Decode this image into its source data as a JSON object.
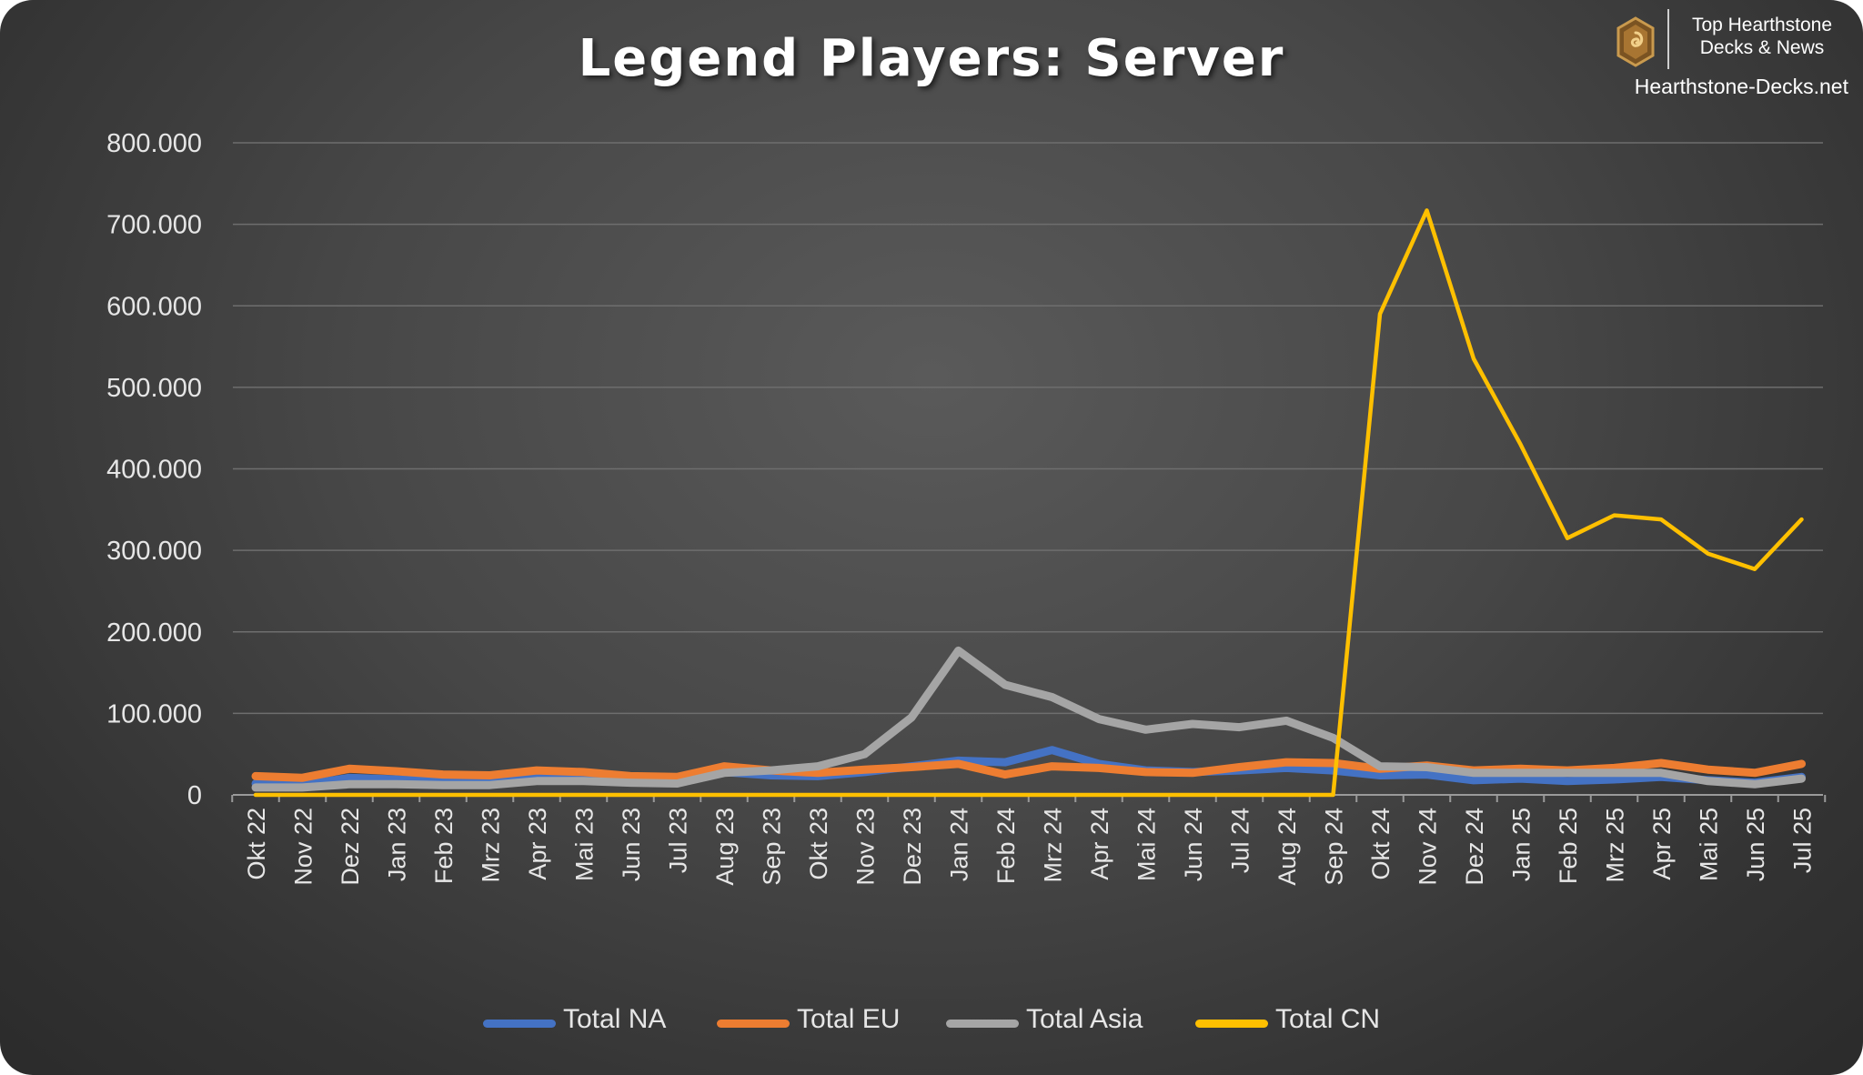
{
  "brand": {
    "line1": "Top Hearthstone",
    "line2": "Decks & News",
    "site": "Hearthstone-Decks.net",
    "logo_icon": "hearthstone-logo-icon",
    "logo_color": "#b8823a"
  },
  "chart_data": {
    "type": "line",
    "title": "Legend Players: Server",
    "xlabel": "",
    "ylabel": "",
    "ylim": [
      0,
      800000
    ],
    "yticks": [
      0,
      100000,
      200000,
      300000,
      400000,
      500000,
      600000,
      700000,
      800000
    ],
    "ytick_labels": [
      "0",
      "100.000",
      "200.000",
      "300.000",
      "400.000",
      "500.000",
      "600.000",
      "700.000",
      "800.000"
    ],
    "grid": true,
    "legend_position": "bottom",
    "categories": [
      "Okt 22",
      "Nov 22",
      "Dez 22",
      "Jan 23",
      "Feb 23",
      "Mrz 23",
      "Apr 23",
      "Mai 23",
      "Jun 23",
      "Jul 23",
      "Aug 23",
      "Sep 23",
      "Okt 23",
      "Nov 23",
      "Dez 23",
      "Jan 24",
      "Feb 24",
      "Mrz 24",
      "Apr 24",
      "Mai 24",
      "Jun 24",
      "Jul 24",
      "Aug 24",
      "Sep 24",
      "Okt 24",
      "Nov 24",
      "Dez 24",
      "Jan 25",
      "Feb 25",
      "Mrz 25",
      "Apr 25",
      "Mai 25",
      "Jun 25",
      "Jul 25"
    ],
    "series": [
      {
        "name": "Total NA",
        "color": "#4472c4",
        "values": [
          14000,
          12000,
          21000,
          19000,
          16000,
          16000,
          22000,
          21000,
          19000,
          18000,
          28000,
          24000,
          23000,
          28000,
          35000,
          42000,
          40000,
          55000,
          38000,
          30000,
          28000,
          30000,
          33000,
          30000,
          24000,
          25000,
          18000,
          20000,
          17000,
          19000,
          22000,
          18000,
          15000,
          22000
        ]
      },
      {
        "name": "Total EU",
        "color": "#ed7d31",
        "values": [
          23000,
          21000,
          32000,
          29000,
          25000,
          24000,
          30000,
          28000,
          23000,
          22000,
          35000,
          30000,
          27000,
          31000,
          34000,
          38000,
          25000,
          35000,
          33000,
          28000,
          27000,
          34000,
          40000,
          39000,
          32000,
          36000,
          30000,
          32000,
          30000,
          33000,
          39000,
          31000,
          27000,
          38000
        ]
      },
      {
        "name": "Total Asia",
        "color": "#a5a5a5",
        "values": [
          9000,
          9000,
          13000,
          13000,
          12000,
          12000,
          17000,
          17000,
          15000,
          14000,
          27000,
          30000,
          35000,
          50000,
          95000,
          177000,
          135000,
          120000,
          93000,
          80000,
          87000,
          83000,
          91000,
          70000,
          35000,
          34000,
          27000,
          27000,
          27000,
          27000,
          27000,
          17000,
          13000,
          20000
        ]
      },
      {
        "name": "Total CN",
        "color": "#ffc000",
        "values": [
          0,
          0,
          0,
          0,
          0,
          0,
          0,
          0,
          0,
          0,
          0,
          0,
          0,
          0,
          0,
          0,
          0,
          0,
          0,
          0,
          0,
          0,
          0,
          0,
          590000,
          717000,
          535000,
          430000,
          315000,
          343000,
          338000,
          296000,
          277000,
          338000
        ]
      }
    ]
  }
}
